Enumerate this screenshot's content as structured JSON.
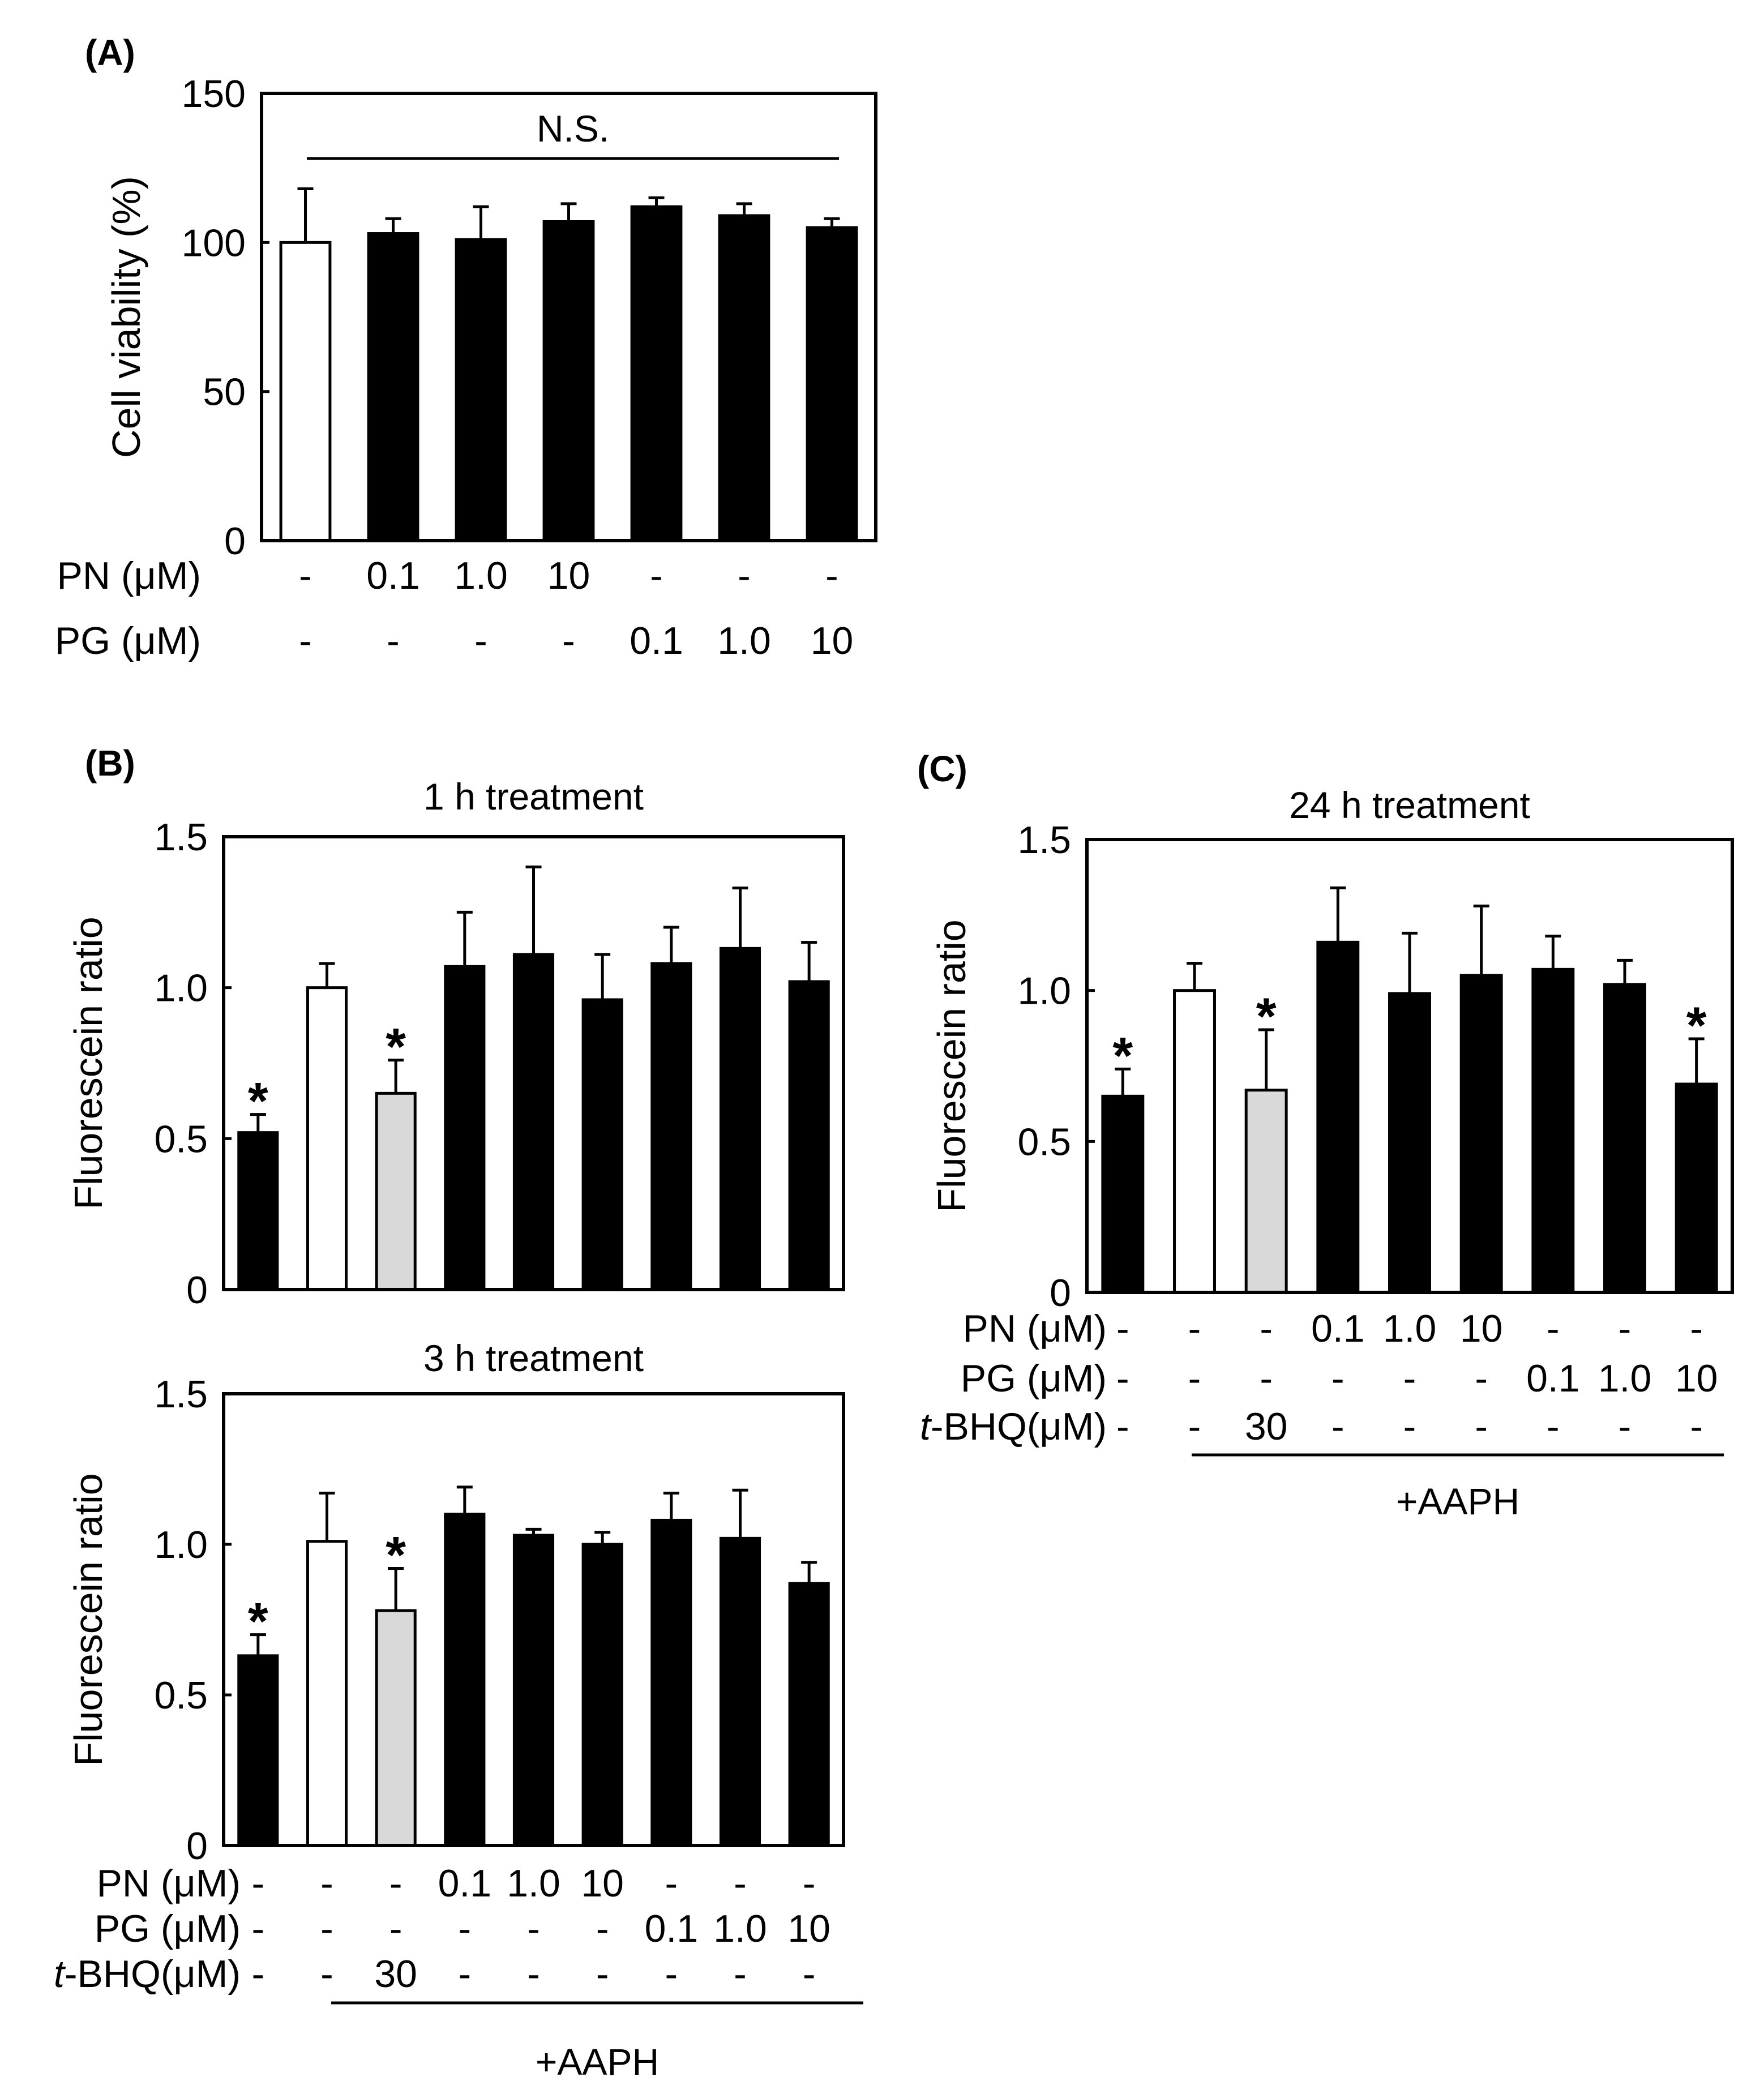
{
  "chart_data": [
    {
      "type": "bar",
      "panel": "(A)",
      "title": "",
      "ylabel": "Cell viability (%)",
      "ylim": [
        0,
        150
      ],
      "yticks": [
        0,
        50,
        100,
        150
      ],
      "annotation": "N.S.",
      "bar_colors": [
        "#ffffff",
        "#000000",
        "#000000",
        "#000000",
        "#000000",
        "#000000",
        "#000000"
      ],
      "values": [
        100,
        103,
        101,
        107,
        112,
        109,
        105
      ],
      "errors": [
        18,
        5,
        11,
        6,
        3,
        4,
        3
      ],
      "significant": [
        false,
        false,
        false,
        false,
        false,
        false,
        false
      ],
      "conditions": [
        {
          "label": "PN (μM)",
          "values": [
            "-",
            "0.1",
            "1.0",
            "10",
            "-",
            "-",
            "-"
          ]
        },
        {
          "label": "PG (μM)",
          "values": [
            "-",
            "-",
            "-",
            "-",
            "0.1",
            "1.0",
            "10"
          ]
        }
      ]
    },
    {
      "type": "bar",
      "panel": "(B)",
      "title": "1 h treatment",
      "ylabel": "Fluorescein ratio",
      "ylim": [
        0,
        1.5
      ],
      "yticks": [
        "0",
        "0.5",
        "1.0",
        "1.5"
      ],
      "bar_colors": [
        "#000000",
        "#ffffff",
        "#d9d9d9",
        "#000000",
        "#000000",
        "#000000",
        "#000000",
        "#000000",
        "#000000"
      ],
      "values": [
        0.52,
        1.0,
        0.65,
        1.07,
        1.11,
        0.96,
        1.08,
        1.13,
        1.02
      ],
      "errors": [
        0.06,
        0.08,
        0.11,
        0.18,
        0.29,
        0.15,
        0.12,
        0.2,
        0.13
      ],
      "significant": [
        true,
        false,
        true,
        false,
        false,
        false,
        false,
        false,
        false
      ]
    },
    {
      "type": "bar",
      "panel": "(B)",
      "title": "3 h treatment",
      "ylabel": "Fluorescein ratio",
      "ylim": [
        0,
        1.5
      ],
      "yticks": [
        "0",
        "0.5",
        "1.0",
        "1.5"
      ],
      "bar_colors": [
        "#000000",
        "#ffffff",
        "#d9d9d9",
        "#000000",
        "#000000",
        "#000000",
        "#000000",
        "#000000",
        "#000000"
      ],
      "values": [
        0.63,
        1.01,
        0.78,
        1.1,
        1.03,
        1.0,
        1.08,
        1.02,
        0.87
      ],
      "errors": [
        0.07,
        0.16,
        0.14,
        0.09,
        0.02,
        0.04,
        0.09,
        0.16,
        0.07
      ],
      "significant": [
        true,
        false,
        true,
        false,
        false,
        false,
        false,
        false,
        false
      ],
      "conditions": [
        {
          "label": "PN (μM)",
          "values": [
            "-",
            "-",
            "-",
            "0.1",
            "1.0",
            "10",
            "-",
            "-",
            "-"
          ]
        },
        {
          "label": "PG (μM)",
          "values": [
            "-",
            "-",
            "-",
            "-",
            "-",
            "-",
            "0.1",
            "1.0",
            "10"
          ]
        },
        {
          "label_prefix": "t",
          "label": "-BHQ(μM)",
          "values": [
            "-",
            "-",
            "30",
            "-",
            "-",
            "-",
            "-",
            "-",
            "-"
          ]
        }
      ],
      "group_label": "+AAPH"
    },
    {
      "type": "bar",
      "panel": "(C)",
      "title": "24 h treatment",
      "ylabel": "Fluorescein ratio",
      "ylim": [
        0,
        1.5
      ],
      "yticks": [
        "0",
        "0.5",
        "1.0",
        "1.5"
      ],
      "bar_colors": [
        "#000000",
        "#ffffff",
        "#d9d9d9",
        "#000000",
        "#000000",
        "#000000",
        "#000000",
        "#000000",
        "#000000"
      ],
      "values": [
        0.65,
        1.0,
        0.67,
        1.16,
        0.99,
        1.05,
        1.07,
        1.02,
        0.69
      ],
      "errors": [
        0.09,
        0.09,
        0.2,
        0.18,
        0.2,
        0.23,
        0.11,
        0.08,
        0.15
      ],
      "significant": [
        true,
        false,
        true,
        false,
        false,
        false,
        false,
        false,
        true
      ],
      "conditions": [
        {
          "label": "PN (μM)",
          "values": [
            "-",
            "-",
            "-",
            "0.1",
            "1.0",
            "10",
            "-",
            "-",
            "-"
          ]
        },
        {
          "label": "PG (μM)",
          "values": [
            "-",
            "-",
            "-",
            "-",
            "-",
            "-",
            "0.1",
            "1.0",
            "10"
          ]
        },
        {
          "label_prefix": "t",
          "label": "-BHQ(μM)",
          "values": [
            "-",
            "-",
            "30",
            "-",
            "-",
            "-",
            "-",
            "-",
            "-"
          ]
        }
      ],
      "group_label": "+AAPH"
    }
  ]
}
